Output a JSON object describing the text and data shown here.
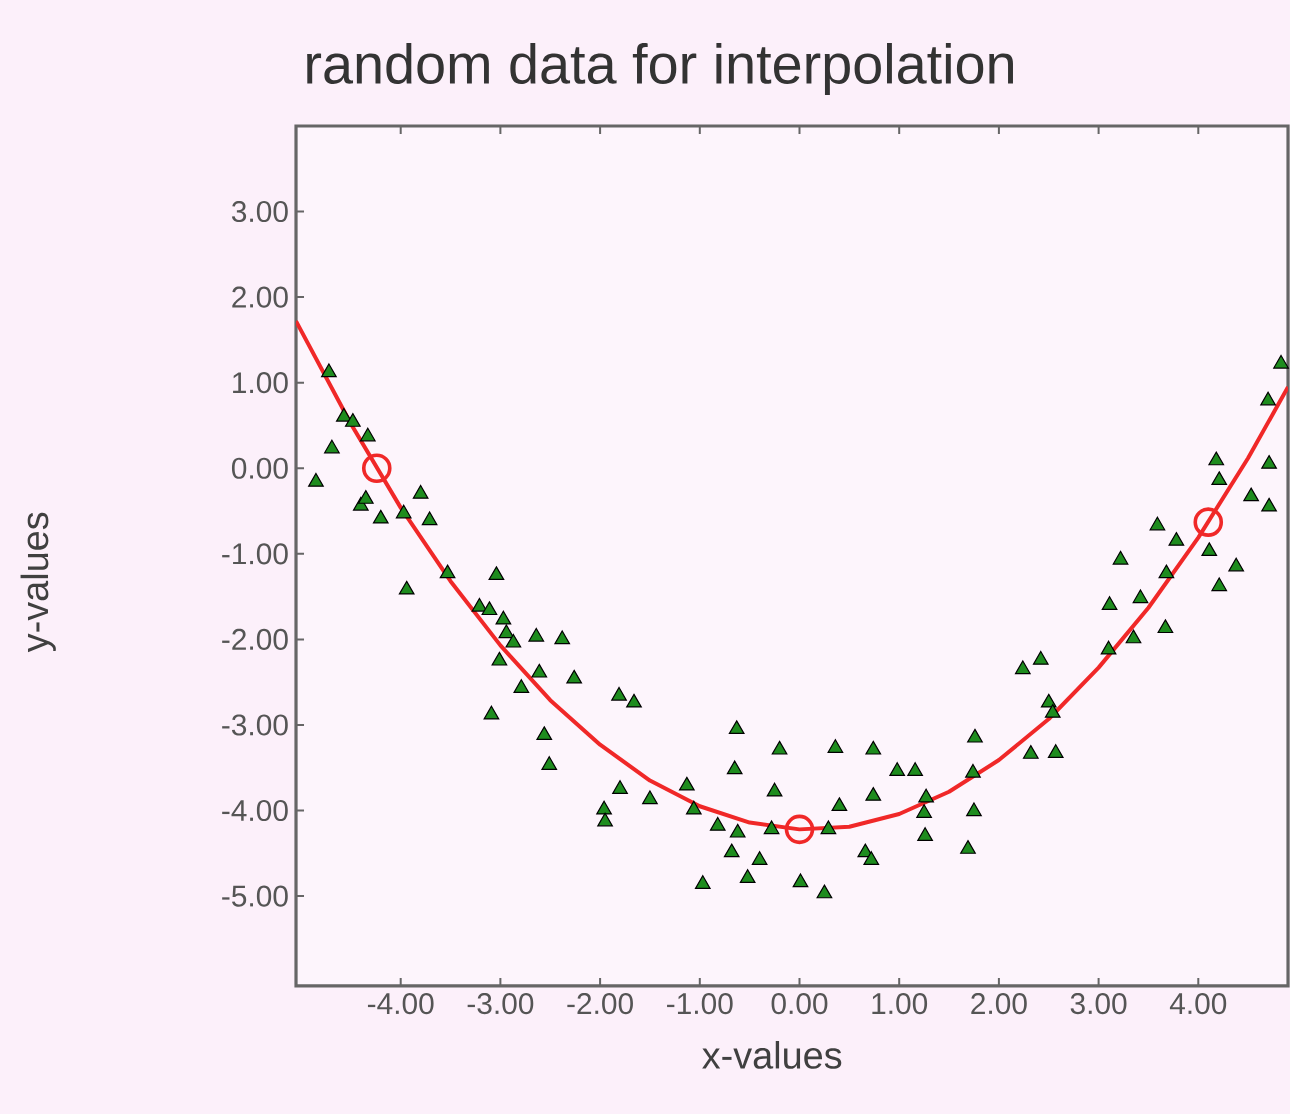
{
  "chart_data": {
    "type": "scatter",
    "title": "random data for interpolation",
    "xlabel": "x-values",
    "ylabel": "y-values",
    "xlim": [
      -5.05,
      4.9
    ],
    "ylim": [
      -6.05,
      4.0
    ],
    "xticks": [
      {
        "value": -4,
        "label": "-4.00"
      },
      {
        "value": -3,
        "label": "-3.00"
      },
      {
        "value": -2,
        "label": "-2.00"
      },
      {
        "value": -1,
        "label": "-1.00"
      },
      {
        "value": 0,
        "label": "0.00"
      },
      {
        "value": 1,
        "label": "1.00"
      },
      {
        "value": 2,
        "label": "2.00"
      },
      {
        "value": 3,
        "label": "3.00"
      },
      {
        "value": 4,
        "label": "4.00"
      }
    ],
    "yticks": [
      {
        "value": -5,
        "label": "-5.00"
      },
      {
        "value": -4,
        "label": "-4.00"
      },
      {
        "value": -3,
        "label": "-3.00"
      },
      {
        "value": -2,
        "label": "-2.00"
      },
      {
        "value": -1,
        "label": "-1.00"
      },
      {
        "value": 0,
        "label": "0.00"
      },
      {
        "value": 1,
        "label": "1.00"
      },
      {
        "value": 2,
        "label": "2.00"
      },
      {
        "value": 3,
        "label": "3.00"
      }
    ],
    "grid": false,
    "series": [
      {
        "marker": "triangle",
        "color": "#1e8c1e",
        "x": [
          -4.72,
          -4.69,
          -4.85,
          -4.57,
          -4.48,
          -4.33,
          -4.4,
          -4.35,
          -4.2,
          -3.8,
          -3.71,
          -3.97,
          -3.53,
          -3.94,
          -3.04,
          -3.21,
          -3.11,
          -2.97,
          -2.94,
          -2.87,
          -2.64,
          -2.38,
          -3.01,
          -2.61,
          -2.26,
          -2.79,
          -3.09,
          -1.81,
          -1.66,
          -2.56,
          -2.51,
          -1.96,
          -1.95,
          -1.8,
          -1.5,
          -1.13,
          -1.06,
          -0.63,
          -0.65,
          -0.2,
          -0.25,
          -0.82,
          -0.62,
          -0.68,
          -0.4,
          -0.97,
          -0.52,
          -0.28,
          0.01,
          0.25,
          0.29,
          0.36,
          0.4,
          0.74,
          0.74,
          0.66,
          0.72,
          0.98,
          1.16,
          1.27,
          1.25,
          1.26,
          1.76,
          1.74,
          1.75,
          1.69,
          2.24,
          2.42,
          2.5,
          2.54,
          2.32,
          2.57,
          3.11,
          3.42,
          3.1,
          3.35,
          3.67,
          3.22,
          3.68,
          4.21,
          4.38,
          3.59,
          3.78,
          4.11,
          4.18,
          4.21,
          4.53,
          4.71,
          4.71,
          4.7,
          4.83
        ],
        "values": [
          1.12,
          0.23,
          -0.16,
          0.6,
          0.54,
          0.37,
          -0.44,
          -0.36,
          -0.59,
          -0.3,
          -0.61,
          -0.53,
          -1.23,
          -1.42,
          -1.25,
          -1.62,
          -1.66,
          -1.77,
          -1.93,
          -2.04,
          -1.97,
          -2.0,
          -2.25,
          -2.39,
          -2.46,
          -2.57,
          -2.88,
          -2.66,
          -2.74,
          -3.12,
          -3.47,
          -3.99,
          -4.13,
          -3.75,
          -3.87,
          -3.71,
          -3.99,
          -3.05,
          -3.52,
          -3.29,
          -3.78,
          -4.18,
          -4.26,
          -4.49,
          -4.58,
          -4.86,
          -4.79,
          -4.22,
          -4.84,
          -4.97,
          -4.22,
          -3.27,
          -3.95,
          -3.29,
          -3.83,
          -4.49,
          -4.58,
          -3.54,
          -3.54,
          -3.85,
          -4.03,
          -4.3,
          -3.15,
          -3.56,
          -4.01,
          -4.45,
          -2.35,
          -2.24,
          -2.74,
          -2.86,
          -3.34,
          -3.33,
          -1.6,
          -1.52,
          -2.12,
          -1.99,
          -1.87,
          -1.07,
          -1.23,
          -1.38,
          -1.15,
          -0.67,
          -0.85,
          -0.97,
          0.09,
          -0.14,
          -0.33,
          -0.45,
          0.05,
          0.79,
          1.22
        ]
      },
      {
        "type": "line",
        "marker": "none",
        "line_style": "solid",
        "color": "#f02828",
        "x": [
          -5.05,
          -4.5,
          -4,
          -3.5,
          -3,
          -2.5,
          -2,
          -1.5,
          -1,
          -0.5,
          0,
          0.5,
          1,
          1.5,
          2,
          2.5,
          3,
          3.5,
          4,
          4.5,
          4.9
        ],
        "values": [
          1.72,
          0.52,
          -0.46,
          -1.32,
          -2.07,
          -2.71,
          -3.23,
          -3.65,
          -3.95,
          -4.14,
          -4.22,
          -4.19,
          -4.04,
          -3.78,
          -3.41,
          -2.93,
          -2.33,
          -1.63,
          -0.81,
          0.12,
          0.95
        ]
      },
      {
        "marker": "circle",
        "color": "#f02828",
        "x": [
          -4.24,
          0.0,
          4.1
        ],
        "values": [
          0.0,
          -4.22,
          -0.63
        ]
      }
    ]
  }
}
